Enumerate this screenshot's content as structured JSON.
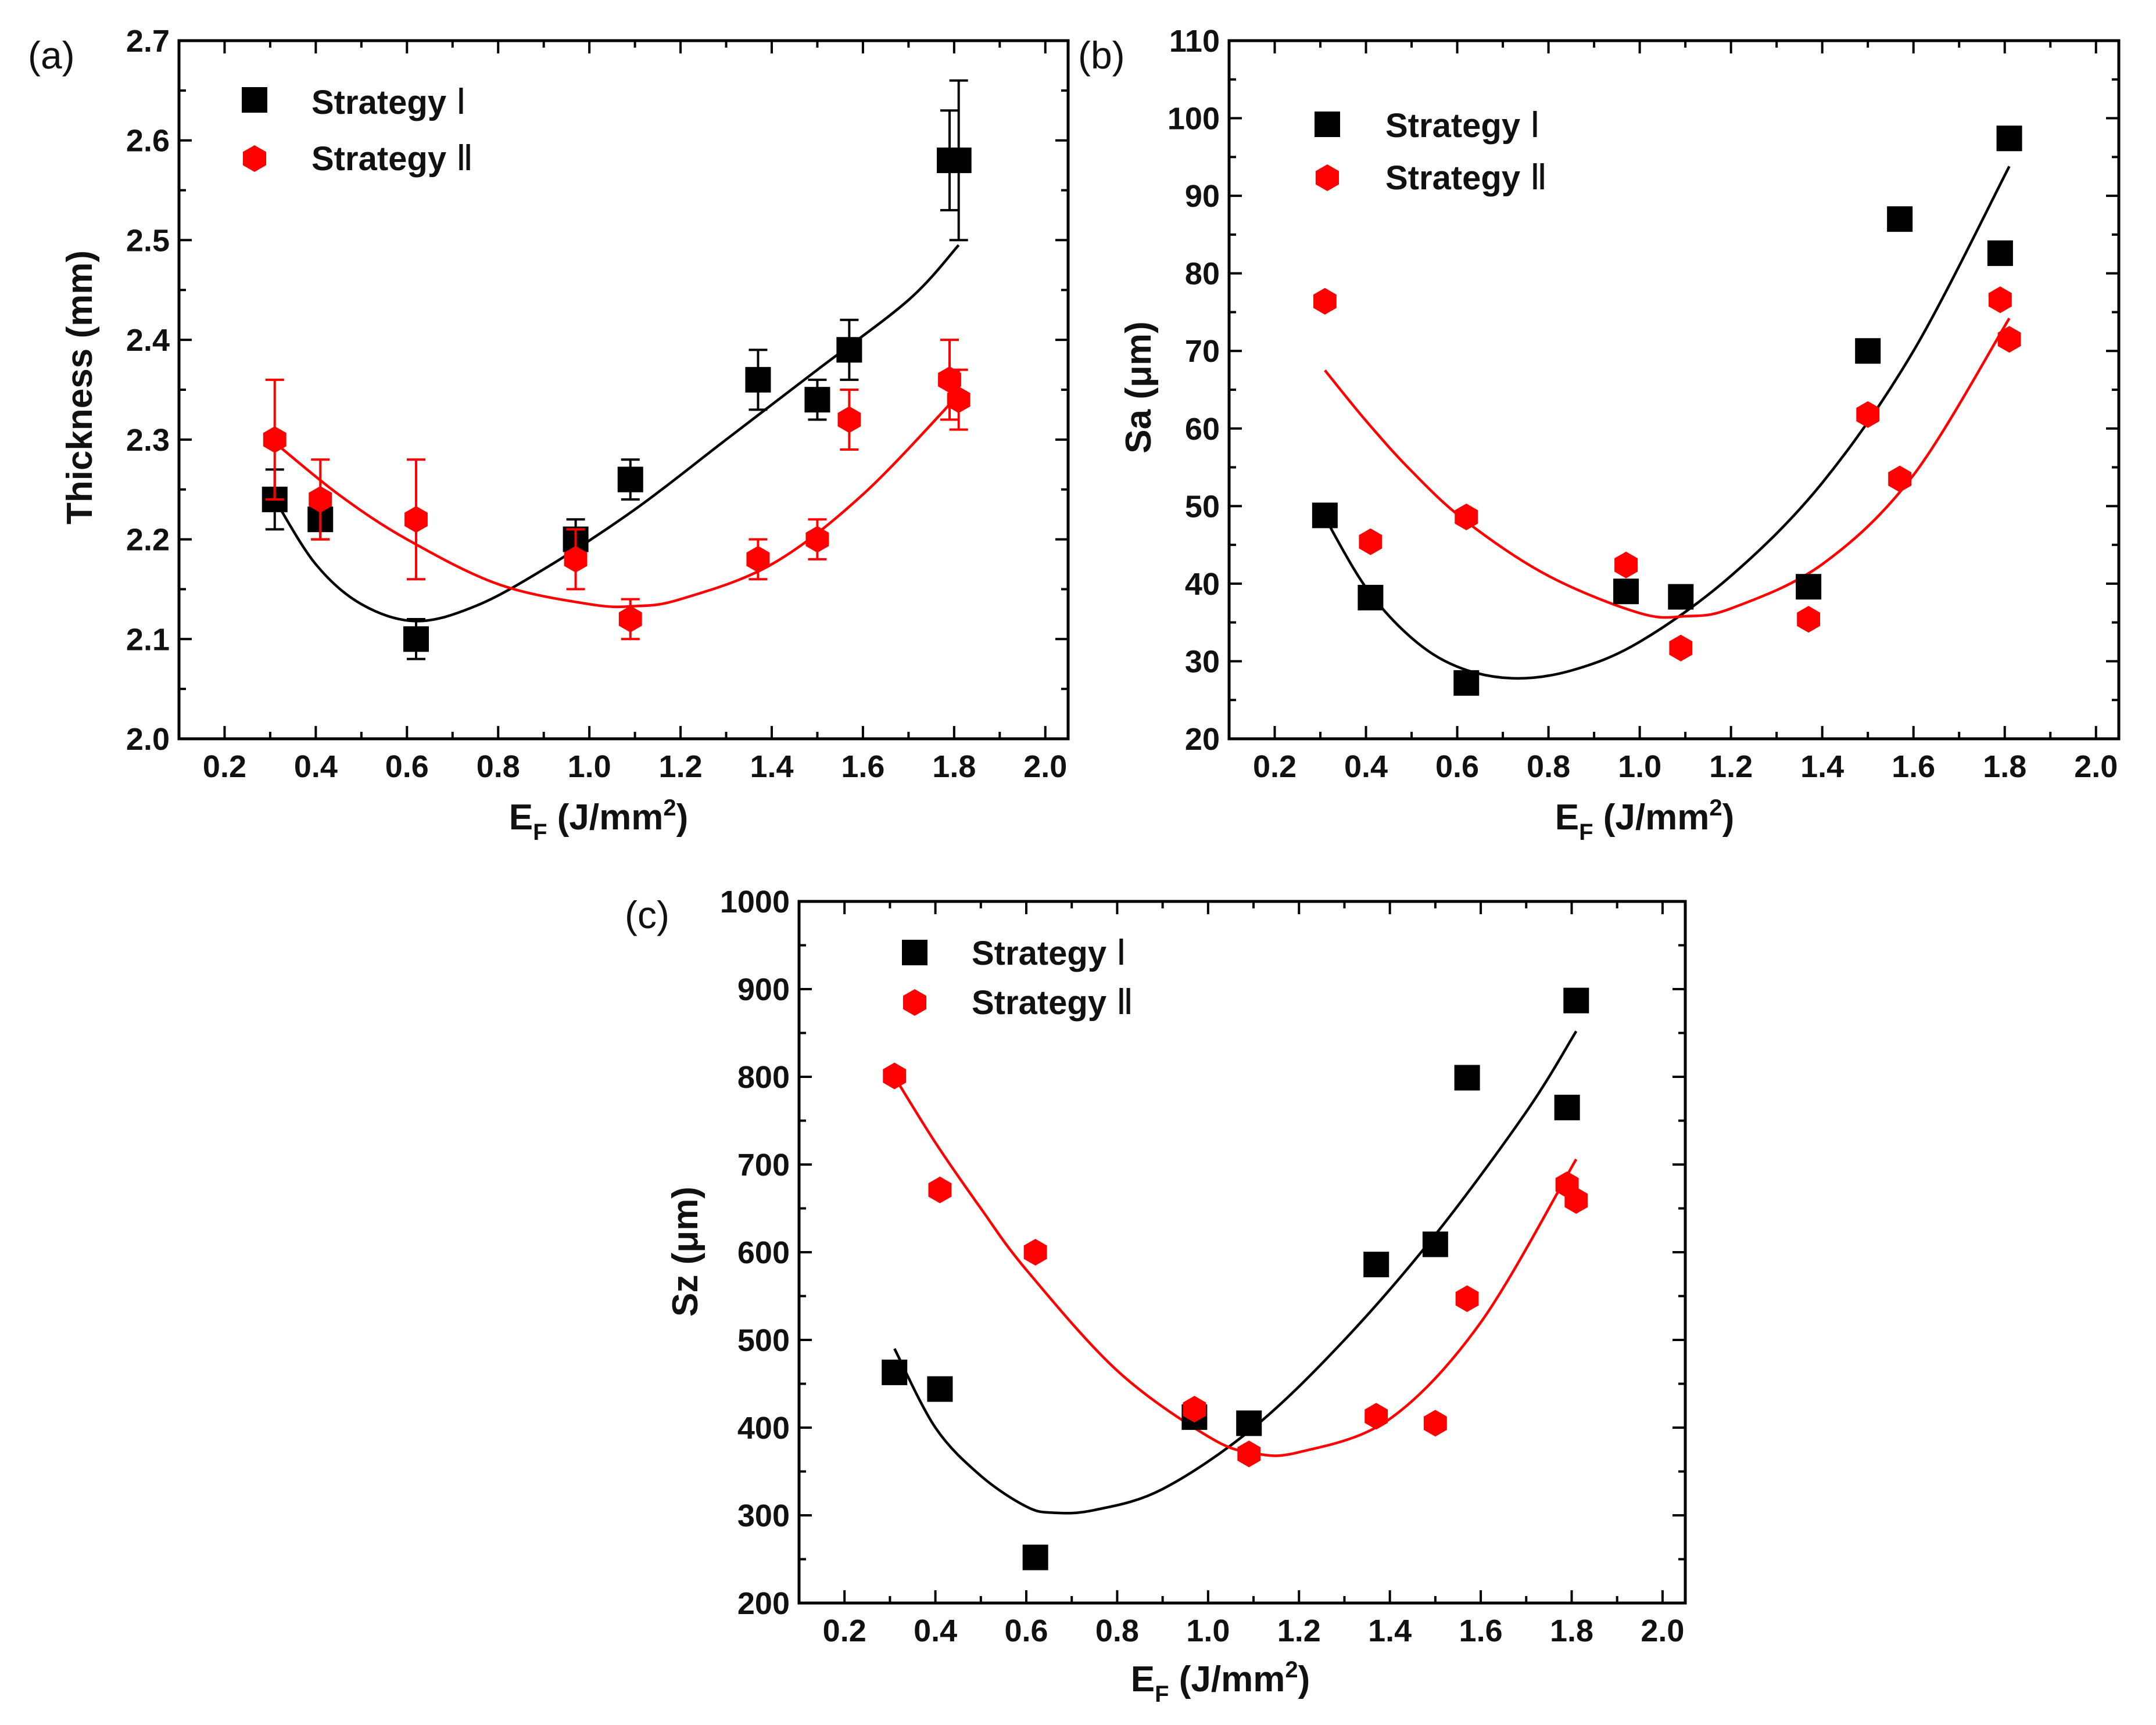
{
  "chart_data": [
    {
      "panel_label": "(a)",
      "type": "scatter",
      "title": "",
      "xlabel_main": "E",
      "xlabel_sub": "F",
      "xlabel_rest": " (J/mm",
      "xlabel_sup": "2",
      "xlabel_end": ")",
      "ylabel": "Thickness (mm)",
      "xlim": [
        0.1,
        2.05
      ],
      "ylim": [
        2.0,
        2.7
      ],
      "xticks": [
        0.2,
        0.4,
        0.6,
        0.8,
        1.0,
        1.2,
        1.4,
        1.6,
        1.8,
        2.0
      ],
      "xtick_labels": [
        "0.2",
        "0.4",
        "0.6",
        "0.8",
        "1.0",
        "1.2",
        "1.4",
        "1.6",
        "1.8",
        "2.0"
      ],
      "yticks": [
        2.0,
        2.1,
        2.2,
        2.3,
        2.4,
        2.5,
        2.6,
        2.7
      ],
      "ytick_labels": [
        "2.0",
        "2.1",
        "2.2",
        "2.3",
        "2.4",
        "2.5",
        "2.6",
        "2.7"
      ],
      "legend_position": "top-left",
      "series": [
        {
          "name": "Strategy",
          "numeral": "Ⅰ",
          "color": "#000000",
          "marker": "square",
          "x": [
            0.31,
            0.41,
            0.62,
            0.97,
            1.09,
            1.37,
            1.5,
            1.57,
            1.79,
            1.81
          ],
          "y": [
            2.24,
            2.22,
            2.1,
            2.2,
            2.26,
            2.36,
            2.34,
            2.39,
            2.58,
            2.58
          ],
          "err": [
            0.03,
            0.02,
            0.02,
            0.02,
            0.02,
            0.03,
            0.02,
            0.03,
            0.05,
            0.08
          ],
          "fit": [
            [
              0.31,
              2.24
            ],
            [
              0.4,
              2.175
            ],
            [
              0.5,
              2.135
            ],
            [
              0.62,
              2.118
            ],
            [
              0.75,
              2.133
            ],
            [
              0.9,
              2.17
            ],
            [
              1.1,
              2.23
            ],
            [
              1.3,
              2.3
            ],
            [
              1.5,
              2.37
            ],
            [
              1.7,
              2.44
            ],
            [
              1.81,
              2.495
            ]
          ]
        },
        {
          "name": "Strategy",
          "numeral": "Ⅱ",
          "color": "#ff0000",
          "marker": "hexagon",
          "x": [
            0.31,
            0.41,
            0.62,
            0.97,
            1.09,
            1.37,
            1.5,
            1.57,
            1.79,
            1.81
          ],
          "y": [
            2.3,
            2.24,
            2.22,
            2.18,
            2.12,
            2.18,
            2.2,
            2.32,
            2.36,
            2.34
          ],
          "err": [
            0.06,
            0.04,
            0.06,
            0.03,
            0.02,
            0.02,
            0.02,
            0.03,
            0.04,
            0.03
          ],
          "fit": [
            [
              0.31,
              2.297
            ],
            [
              0.45,
              2.245
            ],
            [
              0.6,
              2.2
            ],
            [
              0.8,
              2.155
            ],
            [
              1.0,
              2.135
            ],
            [
              1.1,
              2.133
            ],
            [
              1.2,
              2.14
            ],
            [
              1.4,
              2.175
            ],
            [
              1.6,
              2.245
            ],
            [
              1.81,
              2.345
            ]
          ]
        }
      ]
    },
    {
      "panel_label": "(b)",
      "type": "scatter",
      "title": "",
      "xlabel_main": "E",
      "xlabel_sub": "F",
      "xlabel_rest": " (J/mm",
      "xlabel_sup": "2",
      "xlabel_end": ")",
      "ylabel": "Sa (μm)",
      "xlim": [
        0.1,
        2.05
      ],
      "ylim": [
        20,
        110
      ],
      "xticks": [
        0.2,
        0.4,
        0.6,
        0.8,
        1.0,
        1.2,
        1.4,
        1.6,
        1.8,
        2.0
      ],
      "xtick_labels": [
        "0.2",
        "0.4",
        "0.6",
        "0.8",
        "1.0",
        "1.2",
        "1.4",
        "1.6",
        "1.8",
        "2.0"
      ],
      "yticks": [
        20,
        30,
        40,
        50,
        60,
        70,
        80,
        90,
        100,
        110
      ],
      "ytick_labels": [
        "20",
        "30",
        "40",
        "50",
        "60",
        "70",
        "80",
        "90",
        "100",
        "110"
      ],
      "legend_position": "top-left",
      "series": [
        {
          "name": "Strategy",
          "numeral": "Ⅰ",
          "color": "#000000",
          "marker": "square",
          "x": [
            0.31,
            0.41,
            0.62,
            0.97,
            1.09,
            1.37,
            1.5,
            1.57,
            1.79,
            1.81
          ],
          "y": [
            48.8,
            38.2,
            27.2,
            39.0,
            38.3,
            39.6,
            70.0,
            87.0,
            82.6,
            97.4
          ],
          "fit": [
            [
              0.31,
              48.5
            ],
            [
              0.4,
              39.5
            ],
            [
              0.5,
              33.0
            ],
            [
              0.6,
              29.3
            ],
            [
              0.72,
              27.8
            ],
            [
              0.85,
              28.8
            ],
            [
              1.0,
              32.5
            ],
            [
              1.2,
              41.0
            ],
            [
              1.4,
              53.0
            ],
            [
              1.6,
              70.0
            ],
            [
              1.81,
              93.8
            ]
          ]
        },
        {
          "name": "Strategy",
          "numeral": "Ⅱ",
          "color": "#ff0000",
          "marker": "hexagon",
          "x": [
            0.31,
            0.41,
            0.62,
            0.97,
            1.09,
            1.37,
            1.5,
            1.57,
            1.79,
            1.81
          ],
          "y": [
            76.4,
            45.4,
            48.6,
            42.4,
            31.7,
            35.4,
            61.8,
            53.5,
            76.6,
            71.5
          ],
          "fit": [
            [
              0.31,
              67.5
            ],
            [
              0.4,
              61.0
            ],
            [
              0.5,
              54.5
            ],
            [
              0.62,
              48.0
            ],
            [
              0.8,
              41.0
            ],
            [
              1.0,
              36.2
            ],
            [
              1.1,
              35.8
            ],
            [
              1.2,
              36.8
            ],
            [
              1.4,
              42.5
            ],
            [
              1.6,
              54.0
            ],
            [
              1.81,
              74.2
            ]
          ]
        }
      ]
    },
    {
      "panel_label": "(c)",
      "type": "scatter",
      "title": "",
      "xlabel_main": "E",
      "xlabel_sub": "F",
      "xlabel_rest": " (J/mm",
      "xlabel_sup": "2",
      "xlabel_end": ")",
      "ylabel": "Sz (μm)",
      "xlim": [
        0.1,
        2.05
      ],
      "ylim": [
        200,
        1000
      ],
      "xticks": [
        0.2,
        0.4,
        0.6,
        0.8,
        1.0,
        1.2,
        1.4,
        1.6,
        1.8,
        2.0
      ],
      "xtick_labels": [
        "0.2",
        "0.4",
        "0.6",
        "0.8",
        "1.0",
        "1.2",
        "1.4",
        "1.6",
        "1.8",
        "2.0"
      ],
      "yticks": [
        200,
        300,
        400,
        500,
        600,
        700,
        800,
        900,
        1000
      ],
      "ytick_labels": [
        "200",
        "300",
        "400",
        "500",
        "600",
        "700",
        "800",
        "900",
        "1000"
      ],
      "legend_position": "top-left",
      "series": [
        {
          "name": "Strategy",
          "numeral": "Ⅰ",
          "color": "#000000",
          "marker": "square",
          "x": [
            0.31,
            0.41,
            0.62,
            0.97,
            1.09,
            1.37,
            1.5,
            1.57,
            1.79,
            1.81
          ],
          "y": [
            463,
            444,
            252,
            412,
            405,
            586,
            609,
            799,
            765,
            887
          ],
          "fit": [
            [
              0.31,
              490
            ],
            [
              0.4,
              400
            ],
            [
              0.5,
              345
            ],
            [
              0.6,
              310
            ],
            [
              0.66,
              303
            ],
            [
              0.75,
              306
            ],
            [
              0.9,
              330
            ],
            [
              1.1,
              400
            ],
            [
              1.3,
              500
            ],
            [
              1.5,
              620
            ],
            [
              1.7,
              760
            ],
            [
              1.81,
              852
            ]
          ]
        },
        {
          "name": "Strategy",
          "numeral": "Ⅱ",
          "color": "#ff0000",
          "marker": "hexagon",
          "x": [
            0.31,
            0.41,
            0.62,
            0.97,
            1.09,
            1.37,
            1.5,
            1.57,
            1.79,
            1.81
          ],
          "y": [
            801,
            671,
            600,
            421,
            370,
            413,
            405,
            547,
            677,
            659
          ],
          "fit": [
            [
              0.31,
              800
            ],
            [
              0.4,
              725
            ],
            [
              0.5,
              650
            ],
            [
              0.6,
              580
            ],
            [
              0.8,
              465
            ],
            [
              1.0,
              390
            ],
            [
              1.1,
              371
            ],
            [
              1.2,
              372
            ],
            [
              1.4,
              410
            ],
            [
              1.6,
              520
            ],
            [
              1.81,
              706
            ]
          ]
        }
      ]
    }
  ]
}
